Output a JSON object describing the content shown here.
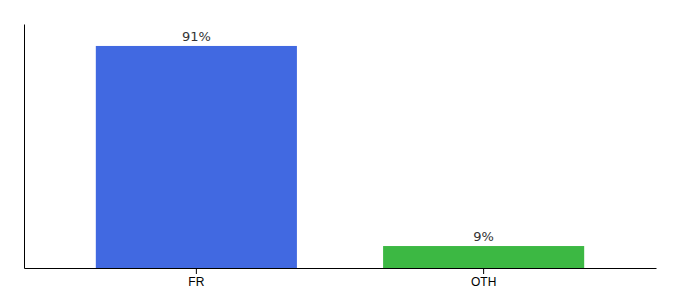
{
  "chart_data": {
    "type": "bar",
    "categories": [
      "FR",
      "OTH"
    ],
    "values": [
      91,
      9
    ],
    "value_labels": [
      "91%",
      "9%"
    ],
    "colors": [
      "#4169e1",
      "#3cb843"
    ],
    "ylim": [
      0,
      100
    ],
    "data_labels": true,
    "tick_labels": "x"
  }
}
